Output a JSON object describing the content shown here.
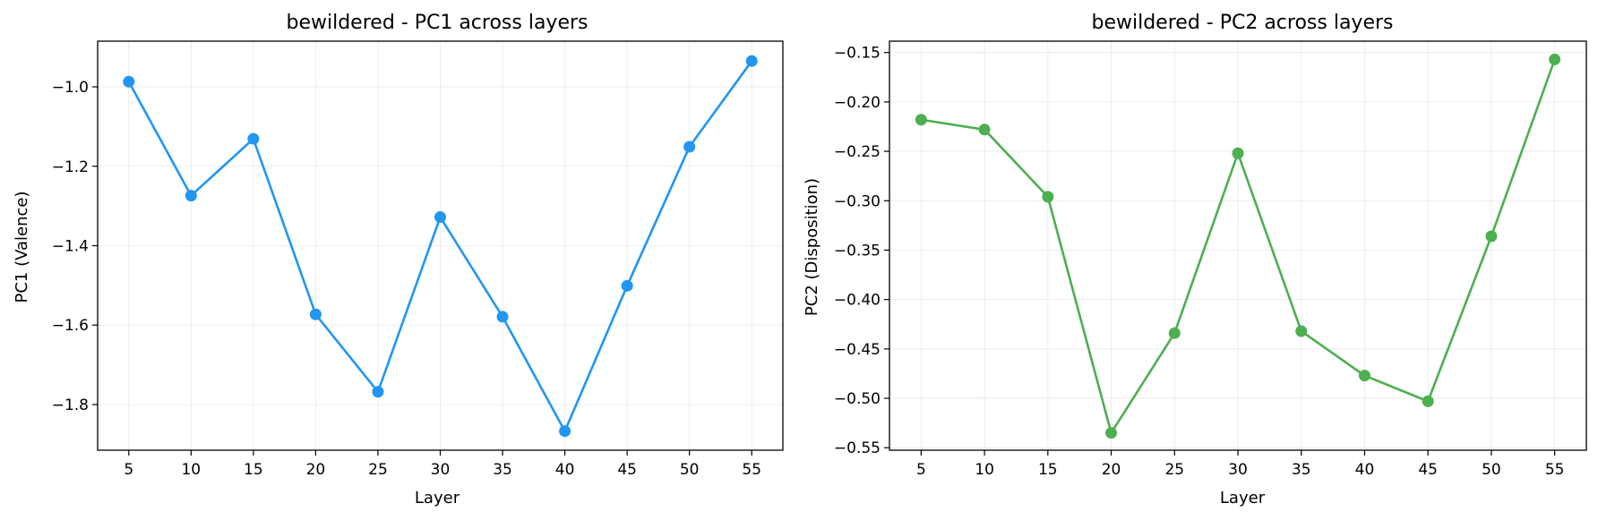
{
  "chart_data": [
    {
      "type": "line",
      "title": "bewildered - PC1 across layers",
      "xlabel": "Layer",
      "ylabel": "PC1 (Valence)",
      "x": [
        5,
        10,
        15,
        20,
        25,
        30,
        35,
        40,
        45,
        50,
        55
      ],
      "xticks": [
        "5",
        "10",
        "15",
        "20",
        "25",
        "30",
        "35",
        "40",
        "45",
        "50",
        "55"
      ],
      "yticks": [
        -1.0,
        -1.2,
        -1.4,
        -1.6,
        -1.8
      ],
      "ytick_labels": [
        "−1.0",
        "−1.2",
        "−1.4",
        "−1.6",
        "−1.8"
      ],
      "xlim": [
        2.5,
        57.5
      ],
      "ylim": [
        -1.915,
        -0.885
      ],
      "grid": true,
      "color": "#2196F3",
      "series": [
        {
          "values": [
            -0.987,
            -1.274,
            -1.131,
            -1.573,
            -1.768,
            -1.328,
            -1.579,
            -1.867,
            -1.501,
            -1.151,
            -0.935
          ]
        }
      ]
    },
    {
      "type": "line",
      "title": "bewildered - PC2 across layers",
      "xlabel": "Layer",
      "ylabel": "PC2 (Disposition)",
      "x": [
        5,
        10,
        15,
        20,
        25,
        30,
        35,
        40,
        45,
        50,
        55
      ],
      "xticks": [
        "5",
        "10",
        "15",
        "20",
        "25",
        "30",
        "35",
        "40",
        "45",
        "50",
        "55"
      ],
      "yticks": [
        -0.15,
        -0.2,
        -0.25,
        -0.3,
        -0.35,
        -0.4,
        -0.45,
        -0.5,
        -0.55
      ],
      "ytick_labels": [
        "−0.15",
        "−0.20",
        "−0.25",
        "−0.30",
        "−0.35",
        "−0.40",
        "−0.45",
        "−0.50",
        "−0.55"
      ],
      "xlim": [
        2.5,
        57.5
      ],
      "ylim": [
        -0.5525,
        -0.1385
      ],
      "grid": true,
      "color": "#4CAF50",
      "series": [
        {
          "values": [
            -0.218,
            -0.228,
            -0.296,
            -0.535,
            -0.434,
            -0.252,
            -0.432,
            -0.477,
            -0.503,
            -0.336,
            -0.157
          ]
        }
      ]
    }
  ]
}
